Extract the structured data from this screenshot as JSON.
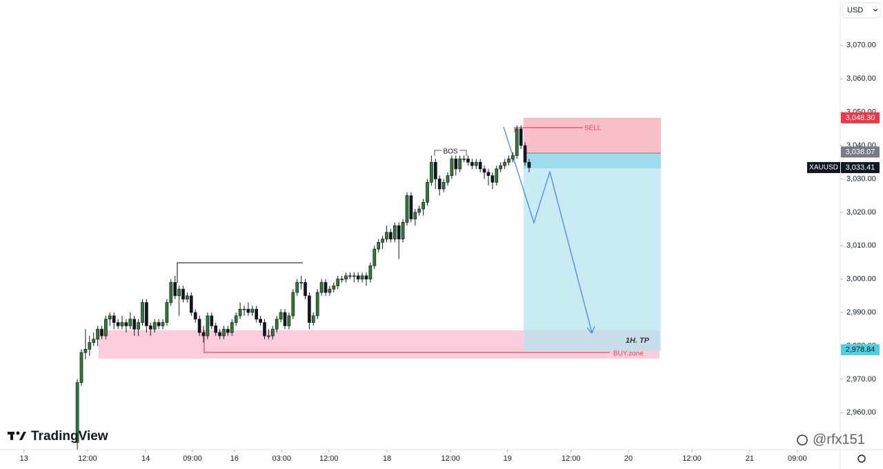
{
  "ui": {
    "currency": "USD",
    "watermark": "TradingView",
    "credit": "@rfx151"
  },
  "chart_data": {
    "type": "candlestick",
    "symbol": "XAUUSD",
    "up_color": "#2e7d32",
    "down_color": "#131722",
    "ylim": [
      2948.9,
      3083.6
    ],
    "yticks": [
      {
        "value": 2960,
        "label": "2,960.00"
      },
      {
        "value": 2970,
        "label": "2,970.00"
      },
      {
        "value": 2980,
        "label": "2,980.00"
      },
      {
        "value": 2990,
        "label": "2,990.00"
      },
      {
        "value": 3000,
        "label": "3,000.00"
      },
      {
        "value": 3010,
        "label": "3,010.00"
      },
      {
        "value": 3020,
        "label": "3,020.00"
      },
      {
        "value": 3030,
        "label": "3,030.00"
      },
      {
        "value": 3040,
        "label": "3,040.00"
      },
      {
        "value": 3050,
        "label": "3,050.00"
      },
      {
        "value": 3060,
        "label": "3,060.00"
      },
      {
        "value": 3070,
        "label": "3,070.00"
      }
    ],
    "xlim": [
      0,
      205
    ],
    "xticks": [
      {
        "value": 5.9,
        "label": "13"
      },
      {
        "value": 21.5,
        "label": "12:00"
      },
      {
        "value": 35.8,
        "label": "14"
      },
      {
        "value": 47.3,
        "label": "09:00"
      },
      {
        "value": 57.6,
        "label": "16"
      },
      {
        "value": 69.2,
        "label": "03:00"
      },
      {
        "value": 80.8,
        "label": "12:00"
      },
      {
        "value": 95.1,
        "label": "18"
      },
      {
        "value": 110.7,
        "label": "12:00"
      },
      {
        "value": 124.7,
        "label": "19"
      },
      {
        "value": 140.3,
        "label": "12:00"
      },
      {
        "value": 154.4,
        "label": "20"
      },
      {
        "value": 170,
        "label": "12:00"
      },
      {
        "value": 184.2,
        "label": "21"
      },
      {
        "value": 195.9,
        "label": "09:00"
      }
    ],
    "x": [
      19,
      20,
      21,
      22,
      23,
      24,
      25,
      26,
      27,
      28,
      29,
      30,
      31,
      32,
      33,
      34,
      35,
      36,
      37,
      38,
      39,
      40,
      41,
      42,
      43,
      44,
      45,
      46,
      47,
      48,
      49,
      50,
      51,
      52,
      53,
      54,
      55,
      56,
      57,
      58,
      59,
      60,
      61,
      62,
      63,
      64,
      65,
      66,
      67,
      68,
      69,
      70,
      71,
      72,
      73,
      74,
      75,
      76,
      77,
      78,
      79,
      80,
      81,
      82,
      83,
      84,
      85,
      86,
      87,
      88,
      89,
      90,
      91,
      92,
      93,
      94,
      95,
      96,
      97,
      98,
      99,
      100,
      101,
      102,
      103,
      104,
      105,
      106,
      107,
      108,
      109,
      110,
      111,
      112,
      113,
      114,
      115,
      116,
      117,
      118,
      119,
      120,
      121,
      122,
      123,
      124,
      125,
      126,
      127,
      128,
      129,
      130
    ],
    "ohlc": [
      [
        2951,
        2970,
        2949,
        2969
      ],
      [
        2969,
        2979,
        2968,
        2978
      ],
      [
        2978,
        2985,
        2976,
        2979
      ],
      [
        2979,
        2983,
        2977,
        2981
      ],
      [
        2981,
        2984,
        2980,
        2982
      ],
      [
        2982,
        2986,
        2980,
        2985
      ],
      [
        2985,
        2986,
        2982,
        2983
      ],
      [
        2983,
        2989,
        2982,
        2988
      ],
      [
        2988,
        2990,
        2986,
        2989
      ],
      [
        2989,
        2990,
        2985,
        2987
      ],
      [
        2987,
        2988,
        2985,
        2986
      ],
      [
        2986,
        2989,
        2985,
        2987
      ],
      [
        2987,
        2988,
        2984,
        2986
      ],
      [
        2986,
        2990,
        2985,
        2988
      ],
      [
        2988,
        2989,
        2983,
        2985
      ],
      [
        2985,
        2988,
        2983,
        2987
      ],
      [
        2987,
        2994,
        2986,
        2993
      ],
      [
        2993,
        2994,
        2984,
        2986
      ],
      [
        2986,
        2987,
        2983,
        2985
      ],
      [
        2985,
        2988,
        2984,
        2987
      ],
      [
        2987,
        2988,
        2985,
        2986
      ],
      [
        2986,
        2988,
        2985,
        2987
      ],
      [
        2987,
        2994,
        2986,
        2993
      ],
      [
        2993,
        3000,
        2992,
        2999
      ],
      [
        2999,
        3001,
        2994,
        2995
      ],
      [
        2995,
        2998,
        2989,
        2997
      ],
      [
        2997,
        2998,
        2993,
        2994
      ],
      [
        2994,
        2996,
        2993,
        2995
      ],
      [
        2995,
        2996,
        2989,
        2990
      ],
      [
        2990,
        2991,
        2987,
        2988
      ],
      [
        2988,
        2989,
        2983,
        2984
      ],
      [
        2984,
        2986,
        2981,
        2983
      ],
      [
        2983,
        2990,
        2982,
        2989
      ],
      [
        2989,
        2990,
        2985,
        2986
      ],
      [
        2986,
        2987,
        2983,
        2984
      ],
      [
        2984,
        2985,
        2982,
        2983
      ],
      [
        2983,
        2986,
        2982,
        2985
      ],
      [
        2985,
        2986,
        2983,
        2984
      ],
      [
        2984,
        2988,
        2983,
        2987
      ],
      [
        2987,
        2990,
        2986,
        2989
      ],
      [
        2989,
        2993,
        2988,
        2991
      ],
      [
        2991,
        2992,
        2989,
        2991
      ],
      [
        2991,
        2993,
        2989,
        2990
      ],
      [
        2990,
        2992,
        2989,
        2991
      ],
      [
        2991,
        2992,
        2987,
        2988
      ],
      [
        2988,
        2989,
        2986,
        2987
      ],
      [
        2987,
        2988,
        2982,
        2983
      ],
      [
        2983,
        2985,
        2982,
        2983
      ],
      [
        2983,
        2986,
        2982,
        2985
      ],
      [
        2985,
        2989,
        2984,
        2988
      ],
      [
        2988,
        2991,
        2987,
        2990
      ],
      [
        2990,
        2991,
        2985,
        2986
      ],
      [
        2986,
        2990,
        2985,
        2989
      ],
      [
        2989,
        2997,
        2988,
        2996
      ],
      [
        2996,
        3000,
        2995,
        2999
      ],
      [
        2999,
        3001,
        2997,
        2999
      ],
      [
        2999,
        3000,
        2994,
        2995
      ],
      [
        2995,
        2996,
        2985,
        2987
      ],
      [
        2987,
        2990,
        2986,
        2989
      ],
      [
        2989,
        2997,
        2988,
        2996
      ],
      [
        2996,
        3000,
        2995,
        2999
      ],
      [
        2999,
        3000,
        2995,
        2996
      ],
      [
        2996,
        2998,
        2995,
        2997
      ],
      [
        2997,
        2999,
        2996,
        2998
      ],
      [
        2998,
        3001,
        2997,
        3000
      ],
      [
        3000,
        3001,
        2999,
        3000
      ],
      [
        3000,
        3002,
        2999,
        3001
      ],
      [
        3001,
        3002,
        3000,
        3001
      ],
      [
        3001,
        3002,
        2999,
        3001
      ],
      [
        3001,
        3002,
        2999,
        3000
      ],
      [
        3000,
        3002,
        2999,
        3001
      ],
      [
        3001,
        3002,
        2998,
        3000
      ],
      [
        3000,
        3005,
        2999,
        3004
      ],
      [
        3004,
        3010,
        3003,
        3009
      ],
      [
        3009,
        3012,
        3008,
        3011
      ],
      [
        3011,
        3013,
        3009,
        3012
      ],
      [
        3012,
        3016,
        3011,
        3014
      ],
      [
        3014,
        3015,
        3011,
        3012
      ],
      [
        3012,
        3017,
        3011,
        3016
      ],
      [
        3016,
        3017,
        3006,
        3012
      ],
      [
        3012,
        3018,
        3011,
        3017
      ],
      [
        3017,
        3026,
        3016,
        3025
      ],
      [
        3025,
        3026,
        3017,
        3018
      ],
      [
        3018,
        3021,
        3016,
        3020
      ],
      [
        3020,
        3022,
        3019,
        3021
      ],
      [
        3021,
        3024,
        3019,
        3023
      ],
      [
        3023,
        3030,
        3022,
        3029
      ],
      [
        3029,
        3037,
        3028,
        3035
      ],
      [
        3035,
        3036,
        3027,
        3030
      ],
      [
        3030,
        3031,
        3025,
        3027
      ],
      [
        3027,
        3030,
        3026,
        3029
      ],
      [
        3029,
        3032,
        3028,
        3031
      ],
      [
        3031,
        3037,
        3030,
        3036
      ],
      [
        3036,
        3037,
        3031,
        3033
      ],
      [
        3033,
        3037,
        3032,
        3036
      ],
      [
        3036,
        3037,
        3035,
        3036
      ],
      [
        3036,
        3037,
        3034,
        3035
      ],
      [
        3035,
        3036,
        3033,
        3034
      ],
      [
        3034,
        3036,
        3033,
        3035
      ],
      [
        3035,
        3036,
        3032,
        3033
      ],
      [
        3033,
        3034,
        3030,
        3032
      ],
      [
        3032,
        3033,
        3028,
        3031
      ],
      [
        3031,
        3032,
        3027,
        3029
      ],
      [
        3029,
        3034,
        3028,
        3033
      ],
      [
        3033,
        3035,
        3032,
        3034
      ],
      [
        3034,
        3036,
        3033,
        3035
      ],
      [
        3035,
        3037,
        3034,
        3036
      ],
      [
        3036,
        3038,
        3035,
        3037
      ],
      [
        3037,
        3046,
        3036,
        3045
      ],
      [
        3045,
        3046,
        3039,
        3040
      ],
      [
        3040,
        3041,
        3034,
        3035
      ],
      [
        3035,
        3036,
        3032,
        3033.41
      ]
    ],
    "price_labels": [
      {
        "value": 3048.3,
        "label": "3,048.30",
        "color": "#f23645"
      },
      {
        "value": 3038.07,
        "label": "3,038.07",
        "color": "#787b86"
      },
      {
        "value": 3033.41,
        "label": "3,033.41",
        "color": "#131722"
      },
      {
        "value": 2978.84,
        "label": "2,978.84",
        "color": "#4dd0e1"
      }
    ],
    "annotations": {
      "bos": "BOS",
      "sell": "SELL",
      "tp": "1H. TP",
      "buy_zone": "BUY.zone"
    }
  }
}
